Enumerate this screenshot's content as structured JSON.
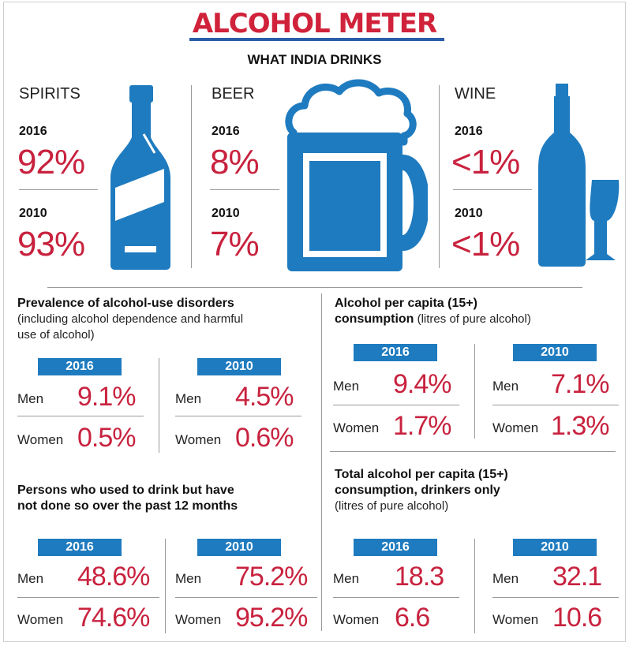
{
  "header": {
    "title": "ALCOHOL METER",
    "subtitle": "WHAT INDIA DRINKS"
  },
  "drinks": [
    {
      "name": "SPIRITS",
      "year_a": "2016",
      "value_a": "92%",
      "year_b": "2010",
      "value_b": "93%",
      "icon": "spirits-bottle-icon"
    },
    {
      "name": "BEER",
      "year_a": "2016",
      "value_a": "8%",
      "year_b": "2010",
      "value_b": "7%",
      "icon": "beer-mug-icon"
    },
    {
      "name": "WINE",
      "year_a": "2016",
      "value_a": "<1%",
      "year_b": "2010",
      "value_b": "<1%",
      "icon": "wine-bottle-glass-icon"
    }
  ],
  "disorders": {
    "title": "Prevalence of alcohol-use disorders",
    "subtitle_l1": "(including alcohol dependence and harmful",
    "subtitle_l2": "use of alcohol)",
    "y2016": {
      "year": "2016",
      "men_label": "Men",
      "men": "9.1%",
      "women_label": "Women",
      "women": "0.5%"
    },
    "y2010": {
      "year": "2010",
      "men_label": "Men",
      "men": "4.5%",
      "women_label": "Women",
      "women": "0.6%"
    }
  },
  "per_capita": {
    "title_l1": "Alcohol per capita (15+)",
    "title_l2_bold": "consumption",
    "title_l2_rest": " (litres of pure alcohol)",
    "y2016": {
      "year": "2016",
      "men_label": "Men",
      "men": "9.4%",
      "women_label": "Women",
      "women": "1.7%"
    },
    "y2010": {
      "year": "2010",
      "men_label": "Men",
      "men": "7.1%",
      "women_label": "Women",
      "women": "1.3%"
    }
  },
  "former_drinkers": {
    "title_l1": "Persons who used to drink but have",
    "title_l2": "not done so over the past 12 months",
    "y2016": {
      "year": "2016",
      "men_label": "Men",
      "men": "48.6%",
      "women_label": "Women",
      "women": "74.6%"
    },
    "y2010": {
      "year": "2010",
      "men_label": "Men",
      "men": "75.2%",
      "women_label": "Women",
      "women": "95.2%"
    }
  },
  "drinkers_only": {
    "title_l1": "Total alcohol per capita (15+)",
    "title_l2": "consumption, drinkers only",
    "subtitle": "(litres of pure alcohol)",
    "y2016": {
      "year": "2016",
      "men_label": "Men",
      "men": "18.3",
      "women_label": "Women",
      "women": "6.6"
    },
    "y2010": {
      "year": "2010",
      "men_label": "Men",
      "men": "32.1",
      "women_label": "Women",
      "women": "10.6"
    }
  },
  "colors": {
    "accent_red": "#c8223e",
    "title_red": "#d0223a",
    "icon_blue": "#1f7bbf",
    "badge_blue": "#1f7bbf"
  }
}
